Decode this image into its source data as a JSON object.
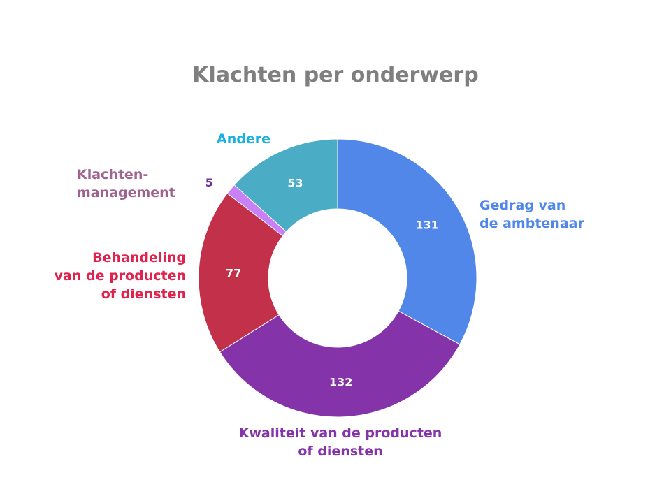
{
  "chart_data": {
    "type": "pie",
    "title": "Klachten per onderwerp",
    "donut": true,
    "categories": [
      "Gedrag van\nde ambtenaar",
      "Kwaliteit van de producten\nof diensten",
      "Behandeling\nvan de producten\nof diensten",
      "Klachten-\nmanagement",
      "Andere"
    ],
    "values": [
      131,
      132,
      77,
      5,
      53
    ],
    "colors": [
      "#5087e8",
      "#8533a8",
      "#c3304a",
      "#c97ff5",
      "#4bacc6"
    ],
    "label_colors": [
      "#5087e8",
      "#8533a8",
      "#e0234d",
      "#a0628f",
      "#1ab0e0"
    ],
    "value_label_colors": [
      "#ffffff",
      "#ffffff",
      "#ffffff",
      "#7030a0",
      "#ffffff"
    ]
  }
}
